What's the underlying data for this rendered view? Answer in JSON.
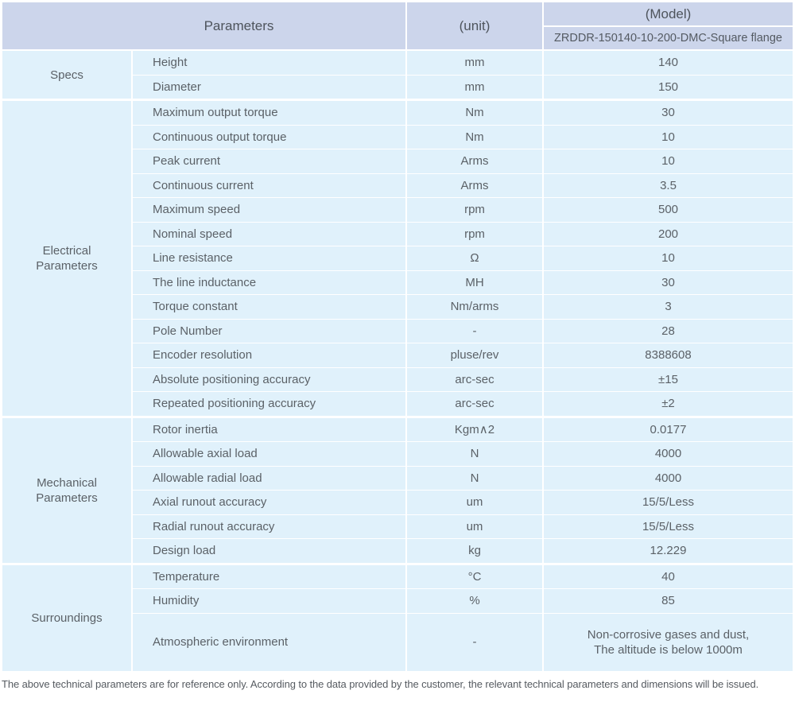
{
  "table": {
    "header": {
      "parameters_label": "Parameters",
      "unit_label": "(unit)",
      "model_label": "(Model)",
      "model_value": "ZRDDR-150140-10-200-DMC-Square flange"
    },
    "sections": [
      {
        "label": "Specs",
        "rows": [
          {
            "param": "Height",
            "unit": "mm",
            "value": "140"
          },
          {
            "param": "Diameter",
            "unit": "mm",
            "value": "150"
          }
        ]
      },
      {
        "label": "Electrical Parameters",
        "rows": [
          {
            "param": "Maximum output torque",
            "unit": "Nm",
            "value": "30"
          },
          {
            "param": "Continuous output torque",
            "unit": "Nm",
            "value": "10"
          },
          {
            "param": "Peak current",
            "unit": "Arms",
            "value": "10"
          },
          {
            "param": "Continuous current",
            "unit": "Arms",
            "value": "3.5"
          },
          {
            "param": "Maximum speed",
            "unit": "rpm",
            "value": "500"
          },
          {
            "param": "Nominal speed",
            "unit": "rpm",
            "value": "200"
          },
          {
            "param": "Line resistance",
            "unit": "Ω",
            "value": "10"
          },
          {
            "param": "The line inductance",
            "unit": "MH",
            "value": "30"
          },
          {
            "param": "Torque constant",
            "unit": "Nm/arms",
            "value": "3"
          },
          {
            "param": "Pole Number",
            "unit": "-",
            "value": "28"
          },
          {
            "param": "Encoder resolution",
            "unit": "pluse/rev",
            "value": "8388608"
          },
          {
            "param": "Absolute positioning accuracy",
            "unit": "arc-sec",
            "value": "±15"
          },
          {
            "param": "Repeated positioning accuracy",
            "unit": "arc-sec",
            "value": "±2"
          }
        ]
      },
      {
        "label": "Mechanical Parameters",
        "rows": [
          {
            "param": "Rotor inertia",
            "unit": "Kgm∧2",
            "value": "0.0177"
          },
          {
            "param": "Allowable axial load",
            "unit": "N",
            "value": "4000"
          },
          {
            "param": "Allowable radial load",
            "unit": "N",
            "value": "4000"
          },
          {
            "param": "Axial runout accuracy",
            "unit": "um",
            "value": "15/5/Less"
          },
          {
            "param": "Radial runout accuracy",
            "unit": "um",
            "value": "15/5/Less"
          },
          {
            "param": "Design load",
            "unit": "kg",
            "value": "12.229"
          }
        ]
      },
      {
        "label": "Surroundings",
        "rows": [
          {
            "param": "Temperature",
            "unit": "°C",
            "value": "40"
          },
          {
            "param": "Humidity",
            "unit": "%",
            "value": "85"
          },
          {
            "param": "Atmospheric environment",
            "unit": "-",
            "value": "Non-corrosive gases and dust,\nThe altitude is below 1000m"
          }
        ]
      }
    ],
    "colors": {
      "header_bg": "#ccd5eb",
      "cell_bg": "#e0f1fb",
      "separator": "#ffffff",
      "text": "#5b6167"
    }
  },
  "footer": {
    "note": "The above technical parameters are for reference only. According to the data provided by the customer, the relevant technical parameters and dimensions will be issued."
  }
}
